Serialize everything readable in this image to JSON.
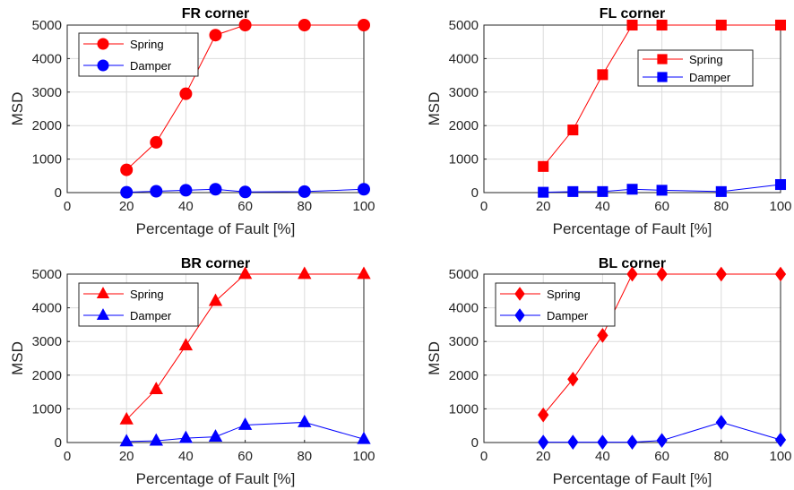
{
  "colors": {
    "spring": "#ff0000",
    "damper": "#0000ff"
  },
  "chart_data": [
    {
      "type": "line",
      "title": "FR corner",
      "xlabel": "Percentage of Fault [%]",
      "ylabel": "MSD",
      "xlim": [
        0,
        100
      ],
      "ylim": [
        0,
        5000
      ],
      "xticks": [
        0,
        20,
        40,
        60,
        80,
        100
      ],
      "yticks": [
        0,
        1000,
        2000,
        3000,
        4000,
        5000
      ],
      "grid": true,
      "marker": "circle",
      "legend_position": "top-left",
      "x": [
        20,
        30,
        40,
        50,
        60,
        80,
        100
      ],
      "series": [
        {
          "name": "Spring",
          "values": [
            680,
            1500,
            2950,
            4700,
            5000,
            5000,
            5000
          ]
        },
        {
          "name": "Damper",
          "values": [
            10,
            40,
            70,
            100,
            20,
            30,
            100
          ]
        }
      ]
    },
    {
      "type": "line",
      "title": "FL corner",
      "xlabel": "Percentage of Fault [%]",
      "ylabel": "MSD",
      "xlim": [
        0,
        100
      ],
      "ylim": [
        0,
        5000
      ],
      "xticks": [
        0,
        20,
        40,
        60,
        80,
        100
      ],
      "yticks": [
        0,
        1000,
        2000,
        3000,
        4000,
        5000
      ],
      "grid": true,
      "marker": "square",
      "legend_position": "top-right",
      "x": [
        20,
        30,
        40,
        50,
        60,
        80,
        100
      ],
      "series": [
        {
          "name": "Spring",
          "values": [
            780,
            1870,
            3520,
            5000,
            5000,
            5000,
            5000
          ]
        },
        {
          "name": "Damper",
          "values": [
            10,
            30,
            30,
            100,
            70,
            30,
            240
          ]
        }
      ]
    },
    {
      "type": "line",
      "title": "BR corner",
      "xlabel": "Percentage of Fault [%]",
      "ylabel": "MSD",
      "xlim": [
        0,
        100
      ],
      "ylim": [
        0,
        5000
      ],
      "xticks": [
        0,
        20,
        40,
        60,
        80,
        100
      ],
      "yticks": [
        0,
        1000,
        2000,
        3000,
        4000,
        5000
      ],
      "grid": true,
      "marker": "triangle",
      "legend_position": "top-left",
      "x": [
        20,
        30,
        40,
        50,
        60,
        80,
        100
      ],
      "series": [
        {
          "name": "Spring",
          "values": [
            680,
            1580,
            2880,
            4200,
            5000,
            5000,
            5000
          ]
        },
        {
          "name": "Damper",
          "values": [
            30,
            50,
            130,
            170,
            520,
            600,
            100
          ]
        }
      ]
    },
    {
      "type": "line",
      "title": "BL corner",
      "xlabel": "Percentage of Fault [%]",
      "ylabel": "MSD",
      "xlim": [
        0,
        100
      ],
      "ylim": [
        0,
        5000
      ],
      "xticks": [
        0,
        20,
        40,
        60,
        80,
        100
      ],
      "yticks": [
        0,
        1000,
        2000,
        3000,
        4000,
        5000
      ],
      "grid": true,
      "marker": "diamond",
      "legend_position": "top-left",
      "x": [
        20,
        30,
        40,
        50,
        60,
        80,
        100
      ],
      "series": [
        {
          "name": "Spring",
          "values": [
            820,
            1880,
            3180,
            5000,
            5000,
            5000,
            5000
          ]
        },
        {
          "name": "Damper",
          "values": [
            10,
            10,
            10,
            10,
            60,
            600,
            80
          ]
        }
      ]
    }
  ]
}
